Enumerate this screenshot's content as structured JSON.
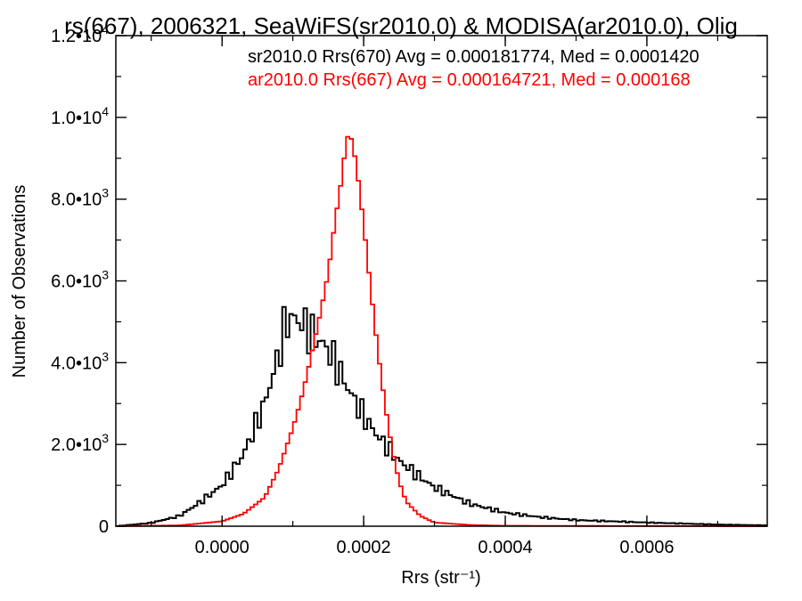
{
  "chart_data": {
    "type": "line",
    "title": "rs(667), 2006321, SeaWiFS(sr2010.0) & MODISA(ar2010.0), Olig",
    "xlabel": "Rrs (str⁻¹)",
    "ylabel": "Number of Observations",
    "xlim": [
      -0.00015,
      0.00077
    ],
    "ylim": [
      0,
      12000
    ],
    "x_ticks": [
      {
        "value": 0.0,
        "label": "0.0000"
      },
      {
        "value": 0.0002,
        "label": "0.0002"
      },
      {
        "value": 0.0004,
        "label": "0.0004"
      },
      {
        "value": 0.0006,
        "label": "0.0006"
      }
    ],
    "y_ticks": [
      {
        "value": 0,
        "mant": "0",
        "exp": ""
      },
      {
        "value": 2000,
        "mant": "2.0•10",
        "exp": "3"
      },
      {
        "value": 4000,
        "mant": "4.0•10",
        "exp": "3"
      },
      {
        "value": 6000,
        "mant": "6.0•10",
        "exp": "3"
      },
      {
        "value": 8000,
        "mant": "8.0•10",
        "exp": "3"
      },
      {
        "value": 10000,
        "mant": "1.0•10",
        "exp": "4"
      },
      {
        "value": 12000,
        "mant": "1.2•10",
        "exp": "4"
      }
    ],
    "legend_position": "top-right",
    "grid": false,
    "series": [
      {
        "name": "sr2010.0 Rrs(670) Avg = 0.000181774, Med = 0.0001420",
        "color": "#000000",
        "jagged": true,
        "bin_width": 5e-06,
        "points": [
          [
            -0.00015,
            0
          ],
          [
            -0.0001,
            80
          ],
          [
            -6e-05,
            250
          ],
          [
            -3e-05,
            600
          ],
          [
            0.0,
            1000
          ],
          [
            3e-05,
            1750
          ],
          [
            6e-05,
            3000
          ],
          [
            8e-05,
            4200
          ],
          [
            9e-05,
            5000
          ],
          [
            0.0001,
            5100
          ],
          [
            0.00011,
            5000
          ],
          [
            0.00012,
            4850
          ],
          [
            0.00013,
            4650
          ],
          [
            0.00014,
            4500
          ],
          [
            0.00015,
            4300
          ],
          [
            0.00016,
            4000
          ],
          [
            0.00017,
            3650
          ],
          [
            0.00018,
            3300
          ],
          [
            0.0002,
            2700
          ],
          [
            0.00022,
            2200
          ],
          [
            0.00025,
            1600
          ],
          [
            0.00028,
            1200
          ],
          [
            0.0003,
            950
          ],
          [
            0.00035,
            550
          ],
          [
            0.0004,
            330
          ],
          [
            0.00045,
            220
          ],
          [
            0.0005,
            150
          ],
          [
            0.0006,
            90
          ],
          [
            0.0007,
            40
          ],
          [
            0.00077,
            20
          ]
        ]
      },
      {
        "name": "ar2010.0 Rrs(667) Avg = 0.000164721, Med = 0.000168",
        "color": "#ff0000",
        "jagged": false,
        "bin_width": 5e-06,
        "points": [
          [
            -0.00015,
            0
          ],
          [
            -6e-05,
            20
          ],
          [
            0.0,
            120
          ],
          [
            3e-05,
            300
          ],
          [
            6e-05,
            700
          ],
          [
            8e-05,
            1400
          ],
          [
            0.0001,
            2400
          ],
          [
            0.00011,
            3000
          ],
          [
            0.00012,
            3700
          ],
          [
            0.00013,
            4500
          ],
          [
            0.00014,
            5300
          ],
          [
            0.00015,
            6200
          ],
          [
            0.00016,
            7500
          ],
          [
            0.00017,
            8600
          ],
          [
            0.000175,
            9400
          ],
          [
            0.00018,
            9650
          ],
          [
            0.000185,
            9300
          ],
          [
            0.00019,
            8800
          ],
          [
            0.0002,
            7400
          ],
          [
            0.00021,
            5800
          ],
          [
            0.00022,
            4300
          ],
          [
            0.00023,
            3000
          ],
          [
            0.00024,
            1900
          ],
          [
            0.00025,
            1100
          ],
          [
            0.00026,
            600
          ],
          [
            0.00028,
            250
          ],
          [
            0.0003,
            90
          ],
          [
            0.00035,
            30
          ],
          [
            0.0004,
            10
          ],
          [
            0.00077,
            0
          ]
        ]
      }
    ]
  }
}
